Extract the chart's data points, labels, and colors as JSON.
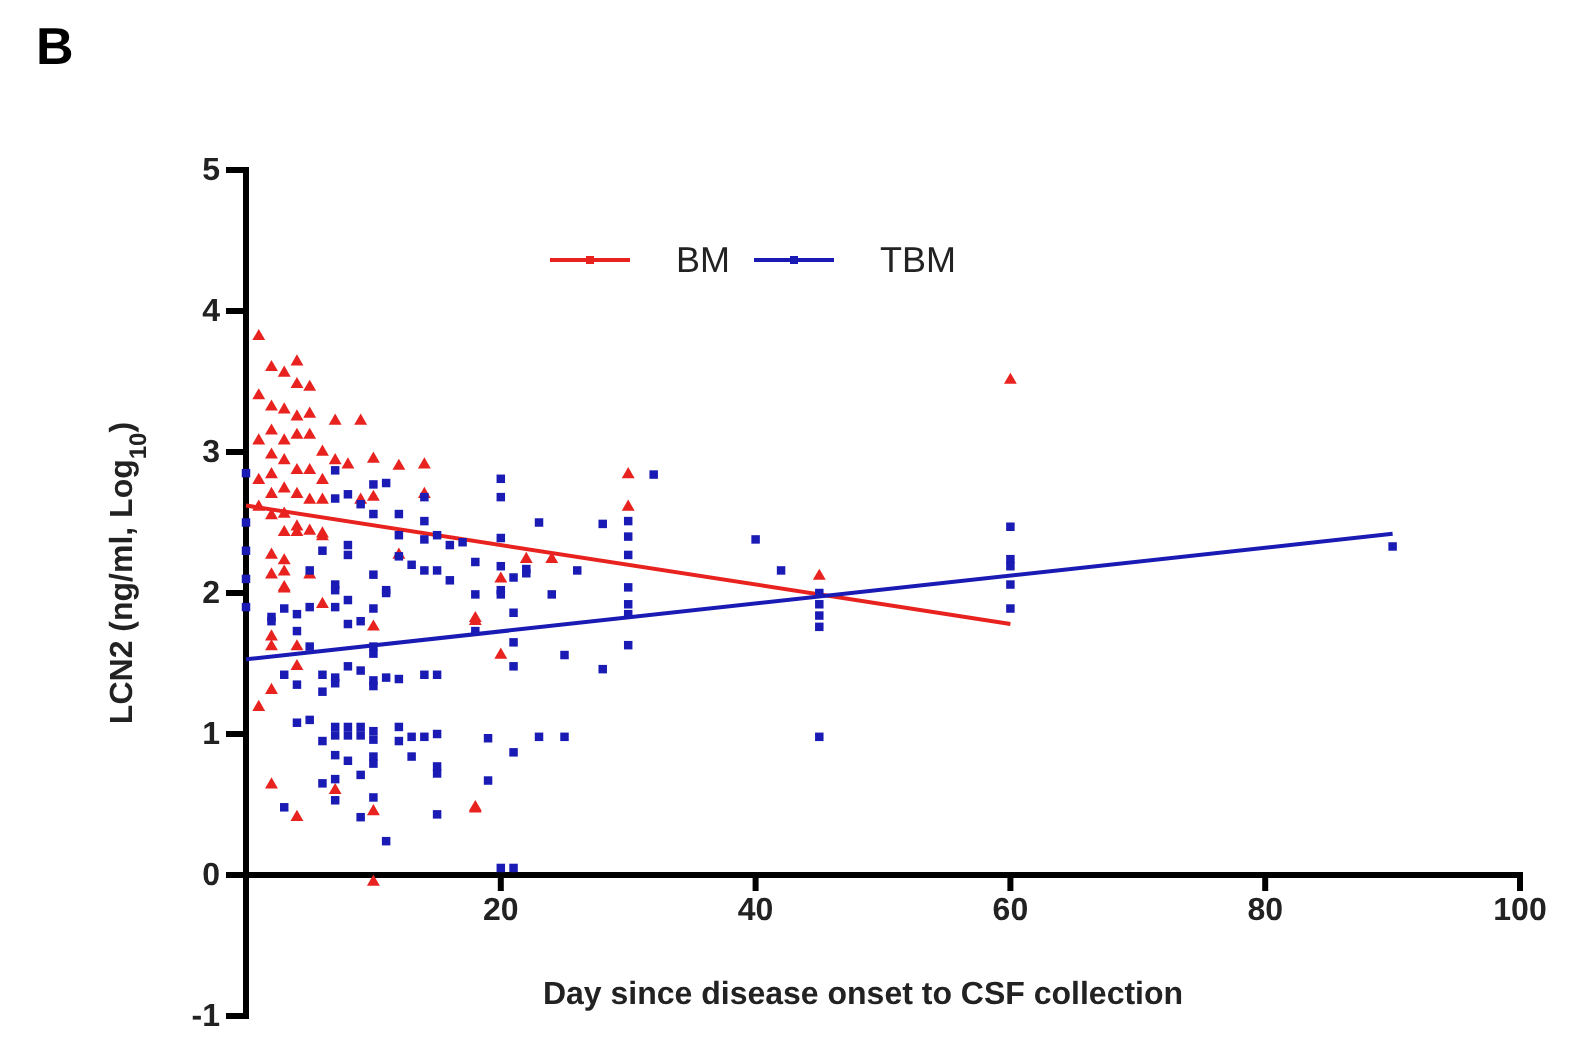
{
  "chart_data": {
    "type": "scatter",
    "title": "B",
    "xlabel": "Day since disease onset to CSF collection",
    "ylabel": "LCN2 (ng/ml, Log$_{10}$)",
    "xlim": [
      0,
      100
    ],
    "xticks": [
      20,
      40,
      60,
      80,
      100
    ],
    "ylim": [
      -1,
      5
    ],
    "yticks": [
      -1,
      0,
      1,
      2,
      3,
      4,
      5
    ],
    "grid": false,
    "legend": "top",
    "series": [
      {
        "name": "BM",
        "color": "#e8231f",
        "marker": "triangle",
        "x": [
          1,
          2,
          4,
          3,
          4,
          5,
          1,
          2,
          3,
          7,
          4,
          5,
          2,
          3,
          4,
          5,
          1,
          6,
          2,
          3,
          7,
          8,
          14,
          1,
          2,
          4,
          5,
          6,
          2,
          3,
          4,
          5,
          6,
          10,
          9,
          1,
          3,
          2,
          4,
          5,
          6,
          2,
          3,
          3,
          4,
          6,
          12,
          2,
          3,
          5,
          3,
          9,
          10,
          12,
          14,
          30,
          30,
          22,
          24,
          20,
          18,
          20,
          18,
          60,
          45,
          3,
          1,
          2,
          2,
          2,
          4,
          2,
          7,
          10,
          10,
          18,
          18,
          10,
          4,
          6,
          4
        ],
        "values": [
          3.82,
          3.6,
          3.64,
          3.56,
          3.48,
          3.46,
          3.4,
          3.32,
          3.3,
          3.22,
          3.25,
          3.27,
          3.15,
          3.08,
          3.12,
          3.12,
          3.08,
          3.0,
          2.98,
          2.94,
          2.94,
          2.91,
          2.91,
          2.8,
          2.84,
          2.87,
          2.87,
          2.8,
          2.7,
          2.74,
          2.7,
          2.66,
          2.66,
          2.68,
          2.66,
          2.61,
          2.56,
          2.55,
          2.47,
          2.44,
          2.42,
          2.27,
          2.43,
          2.23,
          2.43,
          2.4,
          2.27,
          2.13,
          2.15,
          2.13,
          2.04,
          3.22,
          2.95,
          2.9,
          2.7,
          2.84,
          2.61,
          2.24,
          2.24,
          2.1,
          1.82,
          1.56,
          0.48,
          3.51,
          2.12,
          2.03,
          1.19,
          1.31,
          1.69,
          1.62,
          0.41,
          0.64,
          0.6,
          0.45,
          -0.05,
          1.8,
          0.47,
          1.76,
          1.48,
          1.92,
          1.62
        ]
      },
      {
        "name": "TBM",
        "color": "#1a1ab4",
        "marker": "square",
        "x": [
          0,
          0,
          0,
          0,
          0,
          7,
          10,
          11,
          8,
          7,
          14,
          9,
          10,
          12,
          12,
          14,
          15,
          14,
          16,
          6,
          8,
          8,
          12,
          13,
          14,
          15,
          16,
          7,
          5,
          10,
          11,
          2,
          2,
          3,
          4,
          5,
          7,
          7,
          8,
          8,
          9,
          10,
          11,
          10,
          10,
          4,
          5,
          3,
          4,
          6,
          7,
          7,
          6,
          8,
          9,
          10,
          10,
          11,
          12,
          14,
          15,
          4,
          5,
          6,
          7,
          7,
          8,
          8,
          9,
          9,
          10,
          10,
          10,
          10,
          8,
          9,
          7,
          12,
          12,
          13,
          14,
          15,
          13,
          15,
          15,
          6,
          7,
          7,
          3,
          9,
          10,
          11,
          15,
          20,
          20,
          23,
          28,
          32,
          30,
          30,
          30,
          20,
          17,
          18,
          20,
          21,
          22,
          22,
          26,
          20,
          20,
          18,
          24,
          21,
          30,
          30,
          30,
          18,
          21,
          30,
          25,
          28,
          21,
          40,
          42,
          19,
          23,
          25,
          21,
          19,
          20,
          21,
          45,
          45,
          45,
          45,
          45,
          60,
          60,
          60,
          60,
          60,
          90
        ],
        "values": [
          2.85,
          2.5,
          2.3,
          2.1,
          1.9,
          2.87,
          2.77,
          2.78,
          2.7,
          2.67,
          2.68,
          2.63,
          2.56,
          2.56,
          2.41,
          2.51,
          2.41,
          2.38,
          2.34,
          2.3,
          2.34,
          2.27,
          2.26,
          2.2,
          2.16,
          2.16,
          2.09,
          2.06,
          2.16,
          2.13,
          2.02,
          1.83,
          1.8,
          1.89,
          1.85,
          1.9,
          2.02,
          1.9,
          1.95,
          1.78,
          1.8,
          1.89,
          2.0,
          1.62,
          1.57,
          1.73,
          1.62,
          1.42,
          1.35,
          1.42,
          1.4,
          1.36,
          1.3,
          1.48,
          1.45,
          1.38,
          1.34,
          1.4,
          1.39,
          1.42,
          1.42,
          1.08,
          1.1,
          0.95,
          1.05,
          0.99,
          1.05,
          0.99,
          1.05,
          0.99,
          1.02,
          0.96,
          0.84,
          0.79,
          0.81,
          0.71,
          0.85,
          1.05,
          0.95,
          0.98,
          0.98,
          1.0,
          0.84,
          0.77,
          0.72,
          0.65,
          0.68,
          0.53,
          0.48,
          0.41,
          0.55,
          0.24,
          0.43,
          2.81,
          2.68,
          2.5,
          2.49,
          2.84,
          2.51,
          2.4,
          2.27,
          2.39,
          2.36,
          2.22,
          2.19,
          2.11,
          2.14,
          2.17,
          2.16,
          2.02,
          1.99,
          1.99,
          1.99,
          1.86,
          2.04,
          1.92,
          1.85,
          1.73,
          1.65,
          1.63,
          1.56,
          1.46,
          1.48,
          2.38,
          2.16,
          0.97,
          0.98,
          0.98,
          0.87,
          0.67,
          0.05,
          0.05,
          2.0,
          1.84,
          1.92,
          1.76,
          0.98,
          2.47,
          2.24,
          2.19,
          2.06,
          1.89,
          2.33
        ]
      },
      {
        "type": "line",
        "color": "#e8231f",
        "marker": "none",
        "x": [
          0,
          60
        ],
        "values": [
          2.62,
          1.78
        ]
      },
      {
        "type": "line",
        "color": "#1a1ab4",
        "marker": "none",
        "x": [
          0,
          90
        ],
        "values": [
          1.53,
          2.42
        ]
      }
    ]
  }
}
